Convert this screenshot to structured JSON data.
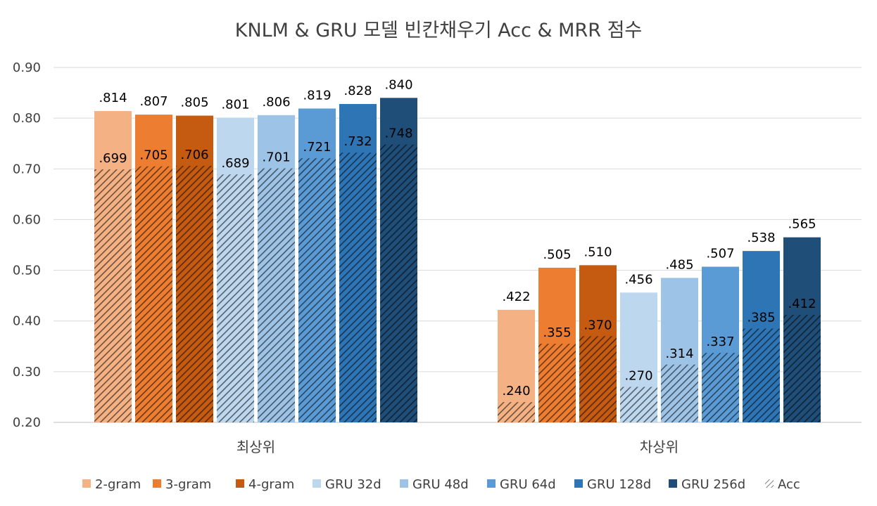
{
  "chart_data": {
    "type": "bar",
    "title": "KNLM & GRU 모델 빈칸채우기 Acc & MRR 점수",
    "categories": [
      "최상위",
      "차상위"
    ],
    "ylim": [
      0.2,
      0.9
    ],
    "yticks": [
      "0.20",
      "0.30",
      "0.40",
      "0.50",
      "0.60",
      "0.70",
      "0.80",
      "0.90"
    ],
    "grid": true,
    "legend_position": "bottom",
    "series": [
      {
        "name": "2-gram",
        "color": "#F4B183",
        "mrr": [
          0.814,
          0.422
        ],
        "acc": [
          0.699,
          0.24
        ],
        "mrr_labels": [
          ".814",
          ".422"
        ],
        "acc_labels": [
          ".699",
          ".240"
        ]
      },
      {
        "name": "3-gram",
        "color": "#ED7D31",
        "mrr": [
          0.807,
          0.505
        ],
        "acc": [
          0.705,
          0.355
        ],
        "mrr_labels": [
          ".807",
          ".505"
        ],
        "acc_labels": [
          ".705",
          ".355"
        ]
      },
      {
        "name": "4-gram",
        "color": "#C55A11",
        "mrr": [
          0.805,
          0.51
        ],
        "acc": [
          0.706,
          0.37
        ],
        "mrr_labels": [
          ".805",
          ".510"
        ],
        "acc_labels": [
          ".706",
          ".370"
        ]
      },
      {
        "name": "GRU 32d",
        "color": "#BDD7EE",
        "mrr": [
          0.801,
          0.456
        ],
        "acc": [
          0.689,
          0.27
        ],
        "mrr_labels": [
          ".801",
          ".456"
        ],
        "acc_labels": [
          ".689",
          ".270"
        ]
      },
      {
        "name": "GRU 48d",
        "color": "#9DC3E6",
        "mrr": [
          0.806,
          0.485
        ],
        "acc": [
          0.701,
          0.314
        ],
        "mrr_labels": [
          ".806",
          ".485"
        ],
        "acc_labels": [
          ".701",
          ".314"
        ]
      },
      {
        "name": "GRU 64d",
        "color": "#5B9BD5",
        "mrr": [
          0.819,
          0.507
        ],
        "acc": [
          0.721,
          0.337
        ],
        "mrr_labels": [
          ".819",
          ".507"
        ],
        "acc_labels": [
          ".721",
          ".337"
        ]
      },
      {
        "name": "GRU 128d",
        "color": "#2E75B6",
        "mrr": [
          0.828,
          0.538
        ],
        "acc": [
          0.732,
          0.385
        ],
        "mrr_labels": [
          ".828",
          ".538"
        ],
        "acc_labels": [
          ".732",
          ".385"
        ]
      },
      {
        "name": "GRU 256d",
        "color": "#1F4E79",
        "mrr": [
          0.84,
          0.565
        ],
        "acc": [
          0.748,
          0.412
        ],
        "mrr_labels": [
          ".840",
          ".565"
        ],
        "acc_labels": [
          ".748",
          ".412"
        ]
      }
    ],
    "hatch_legend": "Acc"
  }
}
